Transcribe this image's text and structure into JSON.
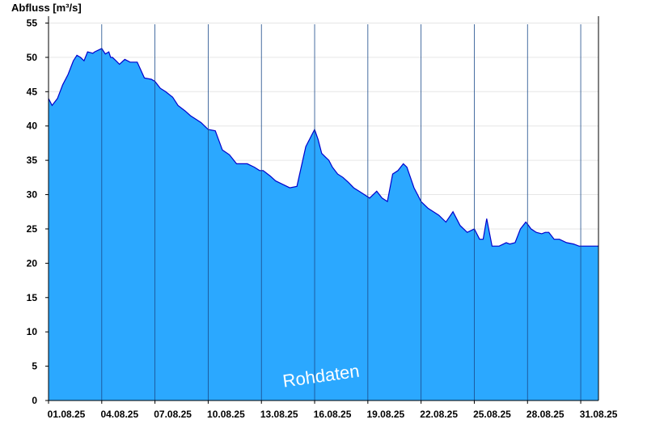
{
  "chart_data": {
    "type": "area",
    "ylabel": "Abfluss [m³/s]",
    "ylim": [
      0,
      56
    ],
    "xlim": [
      0,
      31
    ],
    "yticks": [
      0,
      5,
      10,
      15,
      20,
      25,
      30,
      35,
      40,
      45,
      50,
      55
    ],
    "xticks": [
      {
        "day": 0,
        "label": "01.08.25"
      },
      {
        "day": 3,
        "label": "04.08.25"
      },
      {
        "day": 6,
        "label": "07.08.25"
      },
      {
        "day": 9,
        "label": "10.08.25"
      },
      {
        "day": 12,
        "label": "13.08.25"
      },
      {
        "day": 15,
        "label": "16.08.25"
      },
      {
        "day": 18,
        "label": "19.08.25"
      },
      {
        "day": 21,
        "label": "22.08.25"
      },
      {
        "day": 24,
        "label": "25.08.25"
      },
      {
        "day": 27,
        "label": "28.08.25"
      },
      {
        "day": 30,
        "label": "31.08.25"
      }
    ],
    "grid": "horizontal",
    "fill_color": "#2ba8ff",
    "line_color": "#0000cc",
    "series": [
      {
        "x": [
          0,
          0.2,
          0.5,
          0.8,
          1.1,
          1.4,
          1.6,
          1.8,
          2.0,
          2.2,
          2.5,
          2.6,
          3.0,
          3.2,
          3.4,
          3.5,
          3.6,
          3.8,
          4.0,
          4.3,
          4.6,
          5.0,
          5.4,
          5.8,
          6.0,
          6.3,
          6.6,
          7.0,
          7.3,
          7.7,
          8.0,
          8.3,
          8.6,
          9.0,
          9.4,
          9.8,
          10.2,
          10.6,
          11.0,
          11.2,
          11.6,
          11.9,
          12.1,
          12.5,
          12.8,
          13.2,
          13.6,
          14.0,
          14.5,
          15.0,
          15.2,
          15.4,
          15.6,
          15.8,
          16.0,
          16.3,
          16.6,
          16.9,
          17.2,
          17.5,
          17.8,
          18.1,
          18.5,
          18.8,
          19.1,
          19.4,
          19.7,
          20.0,
          20.2,
          20.4,
          20.6,
          20.8,
          21.0,
          21.2,
          21.4,
          21.7,
          22.0,
          22.4,
          22.8,
          23.2,
          23.6,
          24.0,
          24.3,
          24.5,
          24.7,
          25.0,
          25.4,
          25.8,
          26.0,
          26.3,
          26.6,
          26.9,
          27.0,
          27.2,
          27.5,
          27.8,
          28.0,
          28.2,
          28.5,
          28.8,
          29.2,
          29.6,
          29.9,
          30.2,
          30.5,
          30.8,
          31.0
        ],
        "y": [
          44,
          43,
          44,
          46,
          47.5,
          49.5,
          50.3,
          50,
          49.5,
          50.8,
          50.6,
          50.8,
          51.3,
          50.5,
          50.8,
          50,
          50,
          49.5,
          49,
          49.7,
          49.3,
          49.3,
          47,
          46.8,
          46.5,
          45.5,
          45,
          44.2,
          43,
          42.2,
          41.5,
          41,
          40.5,
          39.5,
          39.3,
          36.5,
          35.8,
          34.5,
          34.5,
          34.5,
          34,
          33.5,
          33.5,
          32.7,
          32,
          31.5,
          31,
          31.2,
          37,
          39.5,
          38,
          36,
          35.5,
          35,
          34,
          33,
          32.5,
          31.8,
          31,
          30.5,
          30,
          29.5,
          30.5,
          29.5,
          29,
          33,
          33.5,
          34.5,
          34,
          32.5,
          31,
          30,
          29,
          28.5,
          28,
          27.5,
          27,
          26,
          27.5,
          25.5,
          24.5,
          25,
          23.5,
          23.5,
          26.5,
          22.5,
          22.5,
          23,
          22.8,
          23,
          25,
          26,
          25.7,
          25,
          24.5,
          24.3,
          24.5,
          24.5,
          23.5,
          23.5,
          23,
          22.8,
          22.5,
          22.5,
          22.5,
          22.5,
          22.5
        ]
      }
    ],
    "watermark": "Rohdaten"
  }
}
